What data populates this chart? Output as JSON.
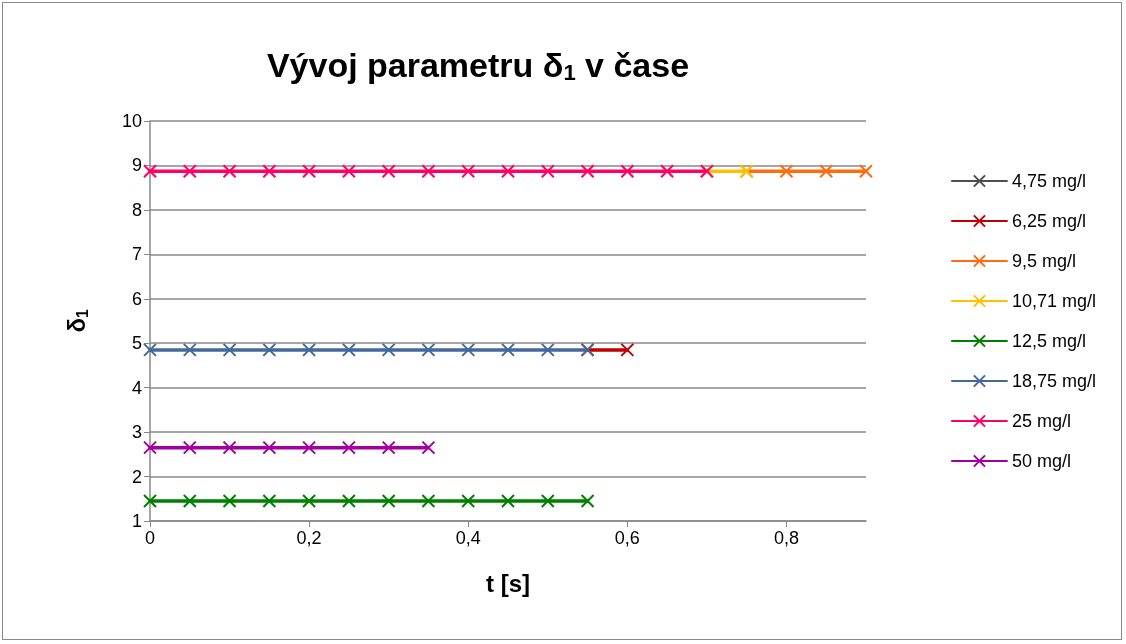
{
  "chart_data": {
    "type": "line",
    "title": "Vývoj parametru δ$_{1}$ v čase",
    "xlabel": "t [s]",
    "ylabel": "δ$_{1}$",
    "xlim": [
      0,
      0.9
    ],
    "xticks": [
      0,
      {
        "value": 0.2,
        "label": "0,2"
      },
      {
        "value": 0.4,
        "label": "0,4"
      },
      {
        "value": 0.6,
        "label": "0,6"
      },
      {
        "value": 0.8,
        "label": "0,8"
      }
    ],
    "ylim": [
      1,
      10
    ],
    "yticks": [
      1,
      2,
      3,
      4,
      5,
      6,
      7,
      8,
      9,
      10
    ],
    "grid": "y",
    "legend": "right",
    "marker": "cross",
    "line_style": "solid",
    "series": [
      {
        "name": "4,75 mg/l",
        "color": "#4d4d4d"
      },
      {
        "name": "6,25 mg/l",
        "color": "#c00000",
        "x": [
          0.55,
          0.6
        ],
        "values": [
          4.85,
          4.85
        ]
      },
      {
        "name": "9,5 mg/l",
        "color": "#ff6b0f",
        "x": [
          0.75,
          0.8,
          0.85,
          0.9
        ],
        "values": [
          8.87,
          8.87,
          8.87,
          8.87
        ]
      },
      {
        "name": "10,71 mg/l",
        "color": "#ffc000",
        "x": [
          0.7,
          0.75
        ],
        "values": [
          8.87,
          8.87
        ]
      },
      {
        "name": "12,5 mg/l",
        "color": "#008000",
        "x": [
          0,
          0.05,
          0.1,
          0.15,
          0.2,
          0.25,
          0.3,
          0.35,
          0.4,
          0.45,
          0.5,
          0.55
        ],
        "values": [
          1.45,
          1.45,
          1.45,
          1.45,
          1.45,
          1.45,
          1.45,
          1.45,
          1.45,
          1.45,
          1.45,
          1.45
        ]
      },
      {
        "name": "18,75 mg/l",
        "color": "#44699b",
        "x": [
          0,
          0.05,
          0.1,
          0.15,
          0.2,
          0.25,
          0.3,
          0.35,
          0.4,
          0.45,
          0.5,
          0.55
        ],
        "values": [
          4.85,
          4.85,
          4.85,
          4.85,
          4.85,
          4.85,
          4.85,
          4.85,
          4.85,
          4.85,
          4.85,
          4.85
        ]
      },
      {
        "name": "25 mg/l",
        "color": "#ff0066",
        "x": [
          0,
          0.05,
          0.1,
          0.15,
          0.2,
          0.25,
          0.3,
          0.35,
          0.4,
          0.45,
          0.5,
          0.55,
          0.6,
          0.65,
          0.7
        ],
        "values": [
          8.87,
          8.87,
          8.87,
          8.87,
          8.87,
          8.87,
          8.87,
          8.87,
          8.87,
          8.87,
          8.87,
          8.87,
          8.87,
          8.87,
          8.87
        ]
      },
      {
        "name": "50 mg/l",
        "color": "#a000a0",
        "x": [
          0,
          0.05,
          0.1,
          0.15,
          0.2,
          0.25,
          0.3,
          0.35
        ],
        "values": [
          2.65,
          2.65,
          2.65,
          2.65,
          2.65,
          2.65,
          2.65,
          2.65
        ]
      }
    ]
  }
}
